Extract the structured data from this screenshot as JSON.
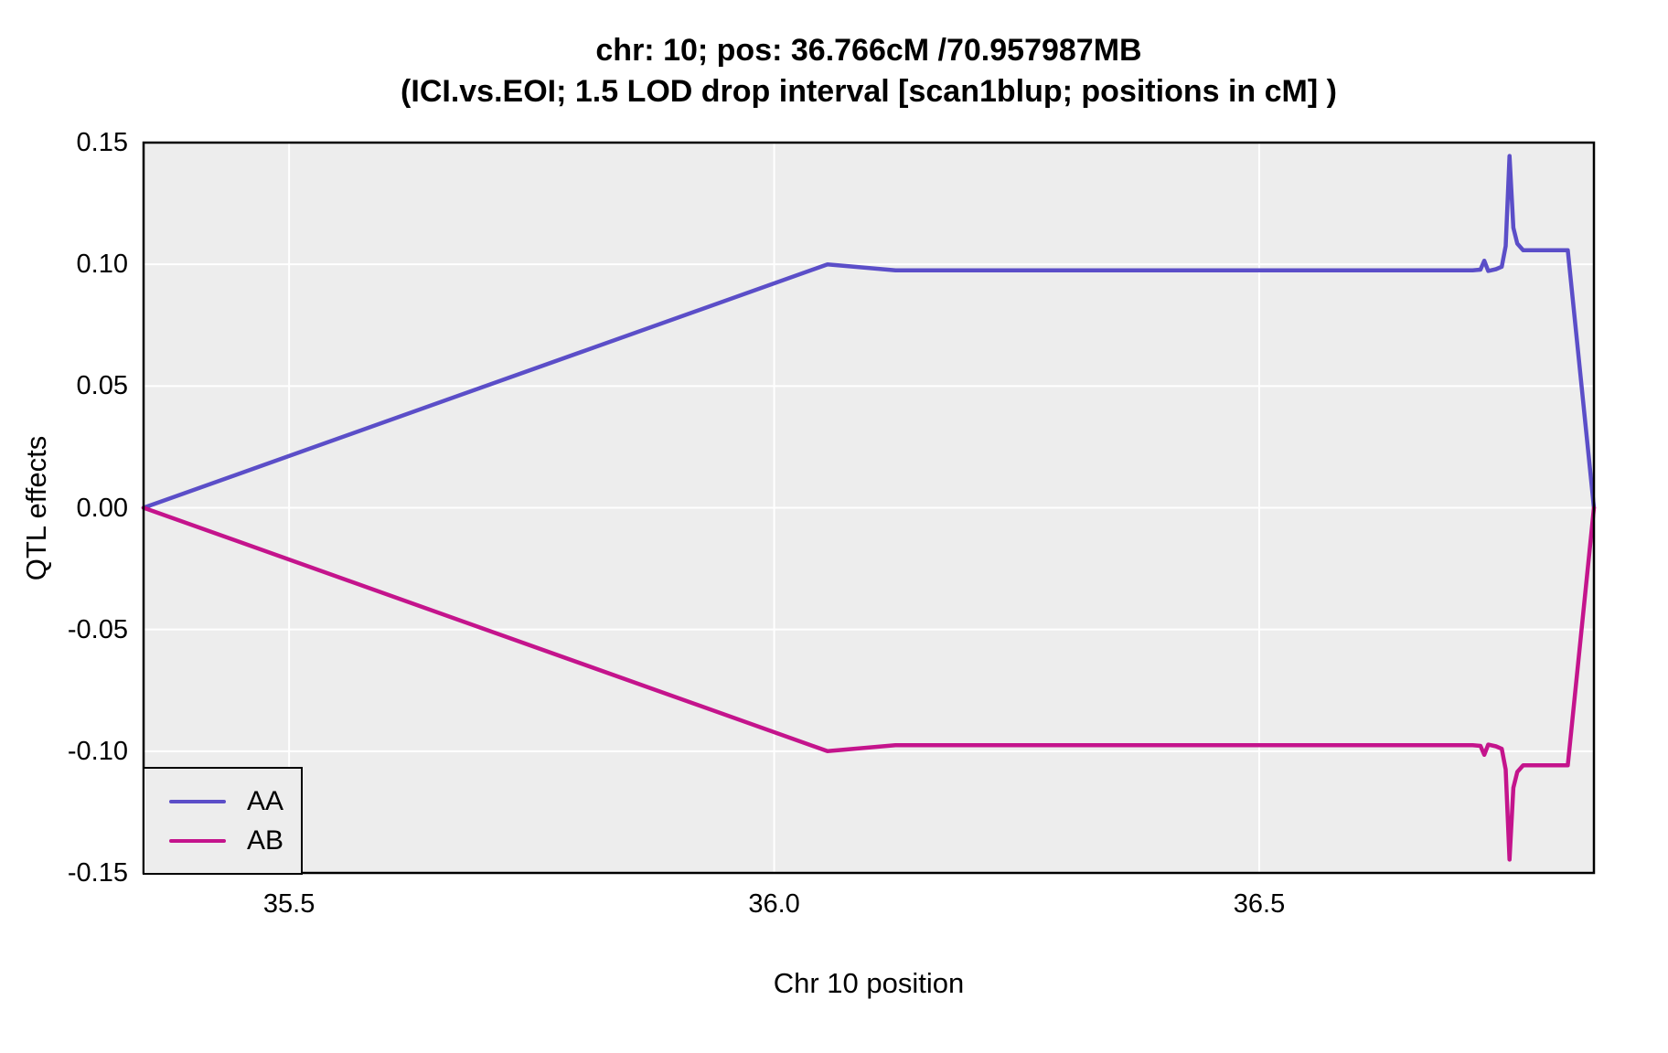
{
  "chart_data": {
    "type": "line",
    "title": "chr: 10; pos: 36.766cM /70.957987MB",
    "subtitle": "(ICI.vs.EOI; 1.5 LOD drop interval [scan1blup; positions in cM] )",
    "xlabel": "Chr 10 position",
    "ylabel": "QTL effects",
    "x_range": [
      35.35,
      36.845
    ],
    "y_range": [
      -0.15,
      0.15
    ],
    "grid": "major gridlines only, white on gray panel",
    "panel_bg": "#EDEDED",
    "grid_color": "#FFFFFF",
    "border_color": "#000000",
    "legend_position": "bottom-left",
    "x_ticks": [
      {
        "value": 35.5,
        "label": "35.5"
      },
      {
        "value": 36.0,
        "label": "36.0"
      },
      {
        "value": 36.5,
        "label": "36.5"
      }
    ],
    "y_ticks": [
      {
        "value": 0.15,
        "label": "0.15"
      },
      {
        "value": 0.1,
        "label": "0.10"
      },
      {
        "value": 0.05,
        "label": "0.05"
      },
      {
        "value": 0.0,
        "label": "0.00"
      },
      {
        "value": -0.05,
        "label": "-0.05"
      },
      {
        "value": -0.1,
        "label": "-0.10"
      },
      {
        "value": -0.15,
        "label": "-0.15"
      }
    ],
    "series": [
      {
        "name": "AA",
        "color": "#5B4EC8",
        "points": [
          [
            35.35,
            0.0
          ],
          [
            36.055,
            0.1
          ],
          [
            36.125,
            0.0975
          ],
          [
            36.72,
            0.0975
          ],
          [
            36.728,
            0.0978
          ],
          [
            36.732,
            0.1015
          ],
          [
            36.736,
            0.0973
          ],
          [
            36.744,
            0.098
          ],
          [
            36.75,
            0.099
          ],
          [
            36.754,
            0.1075
          ],
          [
            36.758,
            0.1445
          ],
          [
            36.762,
            0.115
          ],
          [
            36.766,
            0.1085
          ],
          [
            36.772,
            0.1058
          ],
          [
            36.818,
            0.1058
          ],
          [
            36.845,
            0.0
          ]
        ]
      },
      {
        "name": "AB",
        "color": "#C4148C",
        "points": [
          [
            35.35,
            0.0
          ],
          [
            36.055,
            -0.1
          ],
          [
            36.125,
            -0.0975
          ],
          [
            36.72,
            -0.0975
          ],
          [
            36.728,
            -0.0978
          ],
          [
            36.732,
            -0.1015
          ],
          [
            36.736,
            -0.0973
          ],
          [
            36.744,
            -0.098
          ],
          [
            36.75,
            -0.099
          ],
          [
            36.754,
            -0.1075
          ],
          [
            36.758,
            -0.1445
          ],
          [
            36.762,
            -0.115
          ],
          [
            36.766,
            -0.1085
          ],
          [
            36.772,
            -0.1058
          ],
          [
            36.818,
            -0.1058
          ],
          [
            36.845,
            0.0
          ]
        ]
      }
    ]
  }
}
